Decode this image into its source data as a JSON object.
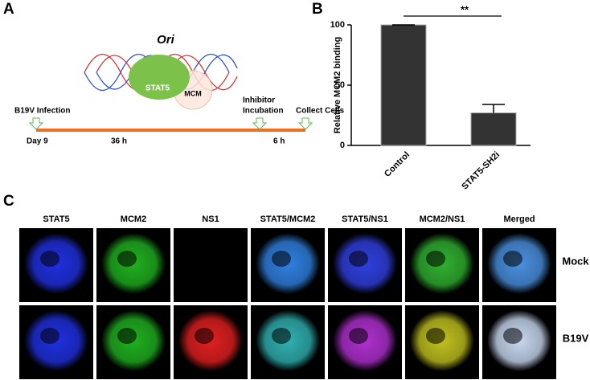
{
  "panels": [
    "A",
    "B",
    "C"
  ],
  "diagram": {
    "title": "Ori",
    "protein_1": "STAT5",
    "protein_2": "MCM",
    "events": [
      "B19V Infection",
      "Inhibitor",
      "Incubation",
      "Collect Cells"
    ],
    "times": [
      "Day 9",
      "36 h",
      "6 h"
    ]
  },
  "chart_data": {
    "type": "bar",
    "y_label": "Relative MCM2 binding",
    "categories": [
      "Control",
      "STAT5-SH2i"
    ],
    "values": [
      100,
      27
    ],
    "errors": [
      0,
      7
    ],
    "color": "#333333",
    "ylim": [
      0,
      100
    ],
    "yticks": [
      0,
      50,
      100
    ],
    "annotation": "**"
  },
  "microscopy": {
    "columns": [
      "STAT5",
      "MCM2",
      "NS1",
      "STAT5/MCM2",
      "STAT5/NS1",
      "MCM2/NS1",
      "Merged"
    ],
    "rows": [
      "Mock",
      "B19V"
    ]
  }
}
